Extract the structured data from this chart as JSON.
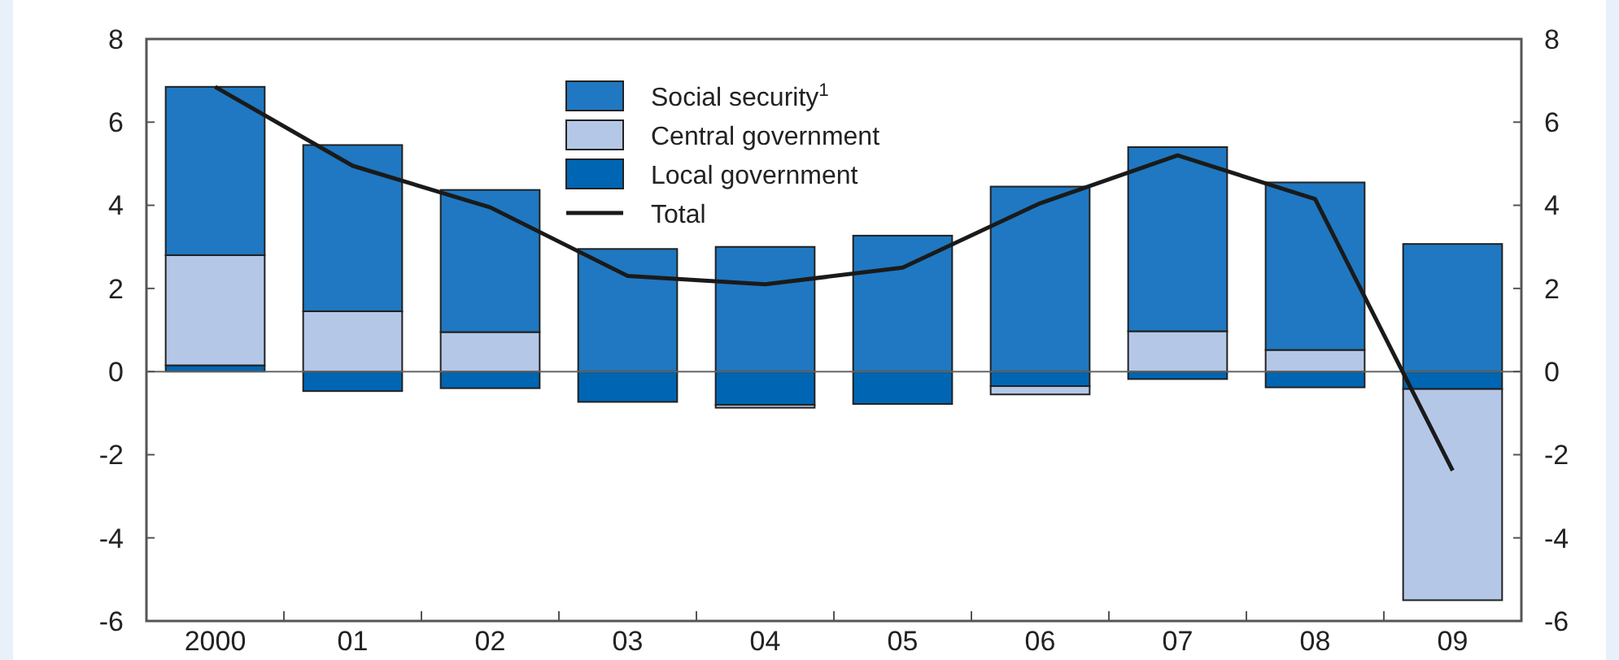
{
  "chart_data": {
    "type": "bar",
    "stacked": true,
    "categories": [
      "2000",
      "01",
      "02",
      "03",
      "04",
      "05",
      "06",
      "07",
      "08",
      "09"
    ],
    "series": [
      {
        "name": "Local government",
        "color": "#0066b3",
        "values": [
          0.15,
          -0.47,
          -0.4,
          -0.73,
          -0.8,
          -0.78,
          -0.35,
          -0.18,
          -0.38,
          -0.42
        ]
      },
      {
        "name": "Central government",
        "color": "#b4c7e7",
        "values": [
          2.65,
          1.45,
          0.95,
          null,
          -0.07,
          null,
          -0.2,
          0.97,
          0.52,
          -5.08
        ]
      },
      {
        "name": "Social security$^{1}$",
        "color": "#1f78c1",
        "values": [
          4.05,
          4.0,
          3.42,
          2.95,
          3.0,
          3.27,
          4.45,
          4.43,
          4.03,
          3.07
        ]
      },
      {
        "name": "Total",
        "type": "line",
        "color": "#1a1a1a",
        "values": [
          6.85,
          4.95,
          3.95,
          2.3,
          2.1,
          2.5,
          4.05,
          5.2,
          4.15,
          -2.38
        ]
      }
    ],
    "ylim": [
      -6,
      8
    ],
    "yticks": [
      -6,
      -4,
      -2,
      0,
      2,
      4,
      6,
      8
    ],
    "y2lim": [
      -6,
      8
    ],
    "y2ticks": [
      -6,
      -4,
      -2,
      0,
      2,
      4,
      6,
      8
    ],
    "legend": "top"
  }
}
